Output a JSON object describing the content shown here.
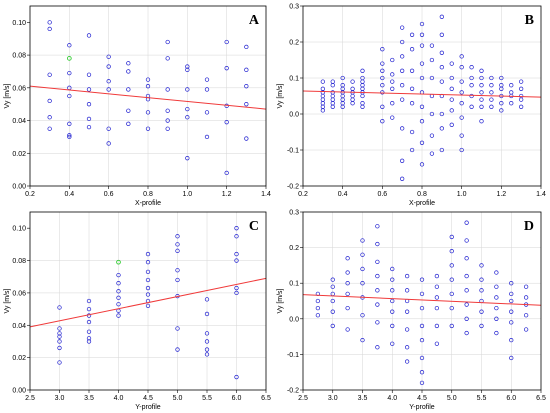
{
  "colors": {
    "point": "#1f1fd0",
    "highlight": "#33cc33",
    "fit": "#f03a3a",
    "frame": "#000000",
    "grid": "#d6d6d6"
  },
  "chart_data": [
    {
      "panel": "A",
      "type": "scatter",
      "title": "",
      "xlabel": "X-profile",
      "ylabel": "Vy [m/s]",
      "xlim": [
        0.2,
        1.4
      ],
      "ylim": [
        0.0,
        0.11
      ],
      "xticks": [
        "0.2",
        "0.4",
        "0.6",
        "0.8",
        "1.0",
        "1.2",
        "1.4"
      ],
      "yticks": [
        "0.00",
        "0.02",
        "0.04",
        "0.06",
        "0.08",
        "0.10"
      ],
      "fit": {
        "x": [
          0.2,
          1.4
        ],
        "y": [
          0.061,
          0.047
        ]
      },
      "grid": true,
      "highlight": [
        [
          0.4,
          0.078
        ]
      ],
      "x": [
        0.3,
        0.3,
        0.3,
        0.3,
        0.3,
        0.3,
        0.4,
        0.4,
        0.4,
        0.4,
        0.4,
        0.4,
        0.4,
        0.5,
        0.5,
        0.5,
        0.5,
        0.5,
        0.5,
        0.6,
        0.6,
        0.6,
        0.6,
        0.6,
        0.6,
        0.7,
        0.7,
        0.7,
        0.7,
        0.7,
        0.8,
        0.8,
        0.8,
        0.8,
        0.8,
        0.8,
        0.9,
        0.9,
        0.9,
        0.9,
        0.9,
        0.9,
        1.0,
        1.0,
        1.0,
        1.0,
        1.0,
        1.0,
        1.1,
        1.1,
        1.1,
        1.1,
        1.2,
        1.2,
        1.2,
        1.2,
        1.2,
        1.3,
        1.3,
        1.3,
        1.3,
        1.3
      ],
      "y": [
        0.1,
        0.096,
        0.068,
        0.052,
        0.042,
        0.035,
        0.086,
        0.069,
        0.06,
        0.055,
        0.038,
        0.031,
        0.03,
        0.092,
        0.068,
        0.059,
        0.05,
        0.041,
        0.036,
        0.079,
        0.073,
        0.064,
        0.059,
        0.035,
        0.026,
        0.075,
        0.07,
        0.059,
        0.046,
        0.038,
        0.065,
        0.061,
        0.055,
        0.053,
        0.045,
        0.035,
        0.088,
        0.078,
        0.059,
        0.046,
        0.04,
        0.035,
        0.073,
        0.071,
        0.059,
        0.047,
        0.042,
        0.017,
        0.065,
        0.059,
        0.045,
        0.03,
        0.088,
        0.072,
        0.049,
        0.039,
        0.008,
        0.085,
        0.071,
        0.061,
        0.05,
        0.029
      ]
    },
    {
      "panel": "B",
      "type": "scatter",
      "title": "",
      "xlabel": "X-profile",
      "ylabel": "Vy [m/s]",
      "xlim": [
        0.2,
        1.4
      ],
      "ylim": [
        -0.2,
        0.3
      ],
      "xticks": [
        "0.2",
        "0.4",
        "0.6",
        "0.8",
        "1.0",
        "1.2",
        "1.4"
      ],
      "yticks": [
        "-0.2",
        "-0.1",
        "0.0",
        "0.1",
        "0.2",
        "0.3"
      ],
      "fit": {
        "x": [
          0.2,
          1.4
        ],
        "y": [
          0.064,
          0.047
        ]
      },
      "grid": true,
      "highlight": [],
      "x": [
        0.3,
        0.3,
        0.3,
        0.3,
        0.3,
        0.3,
        0.3,
        0.3,
        0.35,
        0.35,
        0.35,
        0.35,
        0.35,
        0.35,
        0.35,
        0.4,
        0.4,
        0.4,
        0.4,
        0.4,
        0.4,
        0.4,
        0.4,
        0.45,
        0.45,
        0.45,
        0.45,
        0.45,
        0.45,
        0.5,
        0.5,
        0.5,
        0.5,
        0.5,
        0.5,
        0.5,
        0.5,
        0.5,
        0.6,
        0.6,
        0.6,
        0.6,
        0.6,
        0.6,
        0.6,
        0.6,
        0.65,
        0.65,
        0.65,
        0.65,
        0.65,
        0.65,
        0.7,
        0.7,
        0.7,
        0.7,
        0.7,
        0.7,
        0.7,
        0.7,
        0.7,
        0.75,
        0.75,
        0.75,
        0.75,
        0.75,
        0.75,
        0.75,
        0.8,
        0.8,
        0.8,
        0.8,
        0.8,
        0.8,
        0.8,
        0.8,
        0.8,
        0.8,
        0.85,
        0.85,
        0.85,
        0.85,
        0.85,
        0.85,
        0.85,
        0.9,
        0.9,
        0.9,
        0.9,
        0.9,
        0.9,
        0.9,
        0.9,
        0.9,
        0.95,
        0.95,
        0.95,
        0.95,
        0.95,
        0.95,
        1.0,
        1.0,
        1.0,
        1.0,
        1.0,
        1.0,
        1.0,
        1.0,
        1.05,
        1.05,
        1.05,
        1.05,
        1.05,
        1.1,
        1.1,
        1.1,
        1.1,
        1.1,
        1.1,
        1.1,
        1.15,
        1.15,
        1.15,
        1.15,
        1.15,
        1.2,
        1.2,
        1.2,
        1.2,
        1.2,
        1.2,
        1.25,
        1.25,
        1.25,
        1.25,
        1.3,
        1.3,
        1.3,
        1.3,
        1.3
      ],
      "y": [
        0.09,
        0.07,
        0.06,
        0.05,
        0.04,
        0.03,
        0.02,
        0.01,
        0.09,
        0.08,
        0.06,
        0.05,
        0.04,
        0.03,
        0.02,
        0.1,
        0.08,
        0.07,
        0.06,
        0.05,
        0.04,
        0.03,
        0.02,
        0.09,
        0.07,
        0.06,
        0.05,
        0.04,
        0.03,
        0.12,
        0.1,
        0.09,
        0.08,
        0.07,
        0.06,
        0.05,
        0.03,
        0.02,
        0.18,
        0.14,
        0.12,
        0.1,
        0.08,
        0.06,
        0.02,
        -0.02,
        0.15,
        0.11,
        0.09,
        0.07,
        0.03,
        -0.01,
        0.24,
        0.2,
        0.16,
        0.12,
        0.08,
        0.04,
        -0.04,
        -0.13,
        -0.18,
        0.22,
        0.18,
        0.12,
        0.07,
        0.03,
        -0.05,
        -0.1,
        0.25,
        0.22,
        0.19,
        0.14,
        0.1,
        0.06,
        0.02,
        -0.02,
        -0.08,
        -0.14,
        0.19,
        0.15,
        0.1,
        0.05,
        0.0,
        -0.06,
        -0.11,
        0.27,
        0.22,
        0.17,
        0.13,
        0.09,
        0.05,
        0.0,
        -0.04,
        -0.1,
        0.14,
        0.1,
        0.07,
        0.04,
        0.01,
        -0.03,
        0.16,
        0.13,
        0.09,
        0.06,
        0.03,
        -0.01,
        -0.06,
        -0.1,
        0.13,
        0.1,
        0.08,
        0.05,
        0.02,
        0.12,
        0.1,
        0.08,
        0.06,
        0.04,
        0.02,
        -0.02,
        0.1,
        0.08,
        0.06,
        0.04,
        0.02,
        0.1,
        0.08,
        0.07,
        0.05,
        0.03,
        0.01,
        0.08,
        0.06,
        0.05,
        0.03,
        0.09,
        0.07,
        0.05,
        0.04,
        0.02
      ]
    },
    {
      "panel": "C",
      "type": "scatter",
      "title": "",
      "xlabel": "Y-profile",
      "ylabel": "Vy [m/s]",
      "xlim": [
        2.5,
        6.5
      ],
      "ylim": [
        0.0,
        0.11
      ],
      "xticks": [
        "2.5",
        "3.0",
        "3.5",
        "4.0",
        "4.5",
        "5.0",
        "5.5",
        "6.0",
        "6.5"
      ],
      "yticks": [
        "0.00",
        "0.02",
        "0.04",
        "0.06",
        "0.08",
        "0.10"
      ],
      "fit": {
        "x": [
          2.5,
          6.5
        ],
        "y": [
          0.039,
          0.069
        ]
      },
      "grid": true,
      "highlight": [
        [
          4.0,
          0.079
        ]
      ],
      "x": [
        3.0,
        3.0,
        3.0,
        3.0,
        3.0,
        3.0,
        3.0,
        3.5,
        3.5,
        3.5,
        3.5,
        3.5,
        3.5,
        3.5,
        4.0,
        4.0,
        4.0,
        4.0,
        4.0,
        4.0,
        4.0,
        4.5,
        4.5,
        4.5,
        4.5,
        4.5,
        4.5,
        4.5,
        4.5,
        5.0,
        5.0,
        5.0,
        5.0,
        5.0,
        5.0,
        5.0,
        5.0,
        5.5,
        5.5,
        5.5,
        5.5,
        5.5,
        5.5,
        6.0,
        6.0,
        6.0,
        6.0,
        6.0,
        6.0,
        6.0
      ],
      "y": [
        0.051,
        0.038,
        0.035,
        0.033,
        0.03,
        0.026,
        0.017,
        0.055,
        0.05,
        0.046,
        0.042,
        0.036,
        0.032,
        0.03,
        0.071,
        0.066,
        0.061,
        0.057,
        0.053,
        0.049,
        0.046,
        0.084,
        0.079,
        0.073,
        0.068,
        0.063,
        0.059,
        0.055,
        0.052,
        0.095,
        0.09,
        0.086,
        0.074,
        0.068,
        0.058,
        0.038,
        0.025,
        0.056,
        0.047,
        0.035,
        0.03,
        0.025,
        0.022,
        0.1,
        0.095,
        0.084,
        0.08,
        0.063,
        0.06,
        0.008
      ]
    },
    {
      "panel": "D",
      "type": "scatter",
      "title": "",
      "xlabel": "Y-profile",
      "ylabel": "Vy [m/s]",
      "xlim": [
        2.5,
        6.5
      ],
      "ylim": [
        -0.2,
        0.3
      ],
      "xticks": [
        "2.5",
        "3.0",
        "3.5",
        "4.0",
        "4.5",
        "5.0",
        "5.5",
        "6.0",
        "6.5"
      ],
      "yticks": [
        "-0.2",
        "-0.1",
        "0.0",
        "0.1",
        "0.2",
        "0.3"
      ],
      "fit": {
        "x": [
          2.5,
          6.5
        ],
        "y": [
          0.068,
          0.038
        ]
      },
      "grid": true,
      "highlight": [],
      "x": [
        2.75,
        2.75,
        2.75,
        2.75,
        3.0,
        3.0,
        3.0,
        3.0,
        3.0,
        3.0,
        3.25,
        3.25,
        3.25,
        3.25,
        3.25,
        3.25,
        3.5,
        3.5,
        3.5,
        3.5,
        3.5,
        3.5,
        3.5,
        3.75,
        3.75,
        3.75,
        3.75,
        3.75,
        3.75,
        3.75,
        3.75,
        4.0,
        4.0,
        4.0,
        4.0,
        4.0,
        4.0,
        4.0,
        4.25,
        4.25,
        4.25,
        4.25,
        4.25,
        4.25,
        4.25,
        4.5,
        4.5,
        4.5,
        4.5,
        4.5,
        4.5,
        4.5,
        4.5,
        4.75,
        4.75,
        4.75,
        4.75,
        4.75,
        4.75,
        5.0,
        5.0,
        5.0,
        5.0,
        5.0,
        5.0,
        5.0,
        5.25,
        5.25,
        5.25,
        5.25,
        5.25,
        5.25,
        5.25,
        5.25,
        5.5,
        5.5,
        5.5,
        5.5,
        5.5,
        5.5,
        5.75,
        5.75,
        5.75,
        5.75,
        5.75,
        5.75,
        6.0,
        6.0,
        6.0,
        6.0,
        6.0,
        6.0,
        6.0,
        6.25,
        6.25,
        6.25,
        6.25,
        6.25
      ],
      "y": [
        0.07,
        0.05,
        0.03,
        0.01,
        0.11,
        0.09,
        0.07,
        0.05,
        0.02,
        -0.02,
        0.17,
        0.13,
        0.1,
        0.07,
        0.03,
        -0.03,
        0.22,
        0.18,
        0.14,
        0.1,
        0.06,
        0.01,
        -0.06,
        0.26,
        0.21,
        0.16,
        0.12,
        0.08,
        0.04,
        -0.01,
        -0.08,
        0.14,
        0.11,
        0.08,
        0.05,
        0.02,
        -0.02,
        -0.07,
        0.12,
        0.08,
        0.05,
        0.02,
        -0.03,
        -0.08,
        -0.12,
        0.11,
        0.07,
        0.03,
        -0.02,
        -0.06,
        -0.11,
        -0.15,
        -0.18,
        0.12,
        0.09,
        0.06,
        0.03,
        -0.02,
        -0.07,
        0.23,
        0.19,
        0.15,
        0.11,
        0.07,
        0.03,
        -0.02,
        0.27,
        0.22,
        0.17,
        0.12,
        0.08,
        0.04,
        0.0,
        -0.04,
        0.15,
        0.11,
        0.08,
        0.05,
        0.02,
        -0.02,
        0.13,
        0.09,
        0.06,
        0.03,
        0.0,
        -0.04,
        0.1,
        0.07,
        0.05,
        0.02,
        -0.01,
        -0.06,
        -0.11,
        0.09,
        0.06,
        0.04,
        0.01,
        -0.03
      ]
    }
  ]
}
